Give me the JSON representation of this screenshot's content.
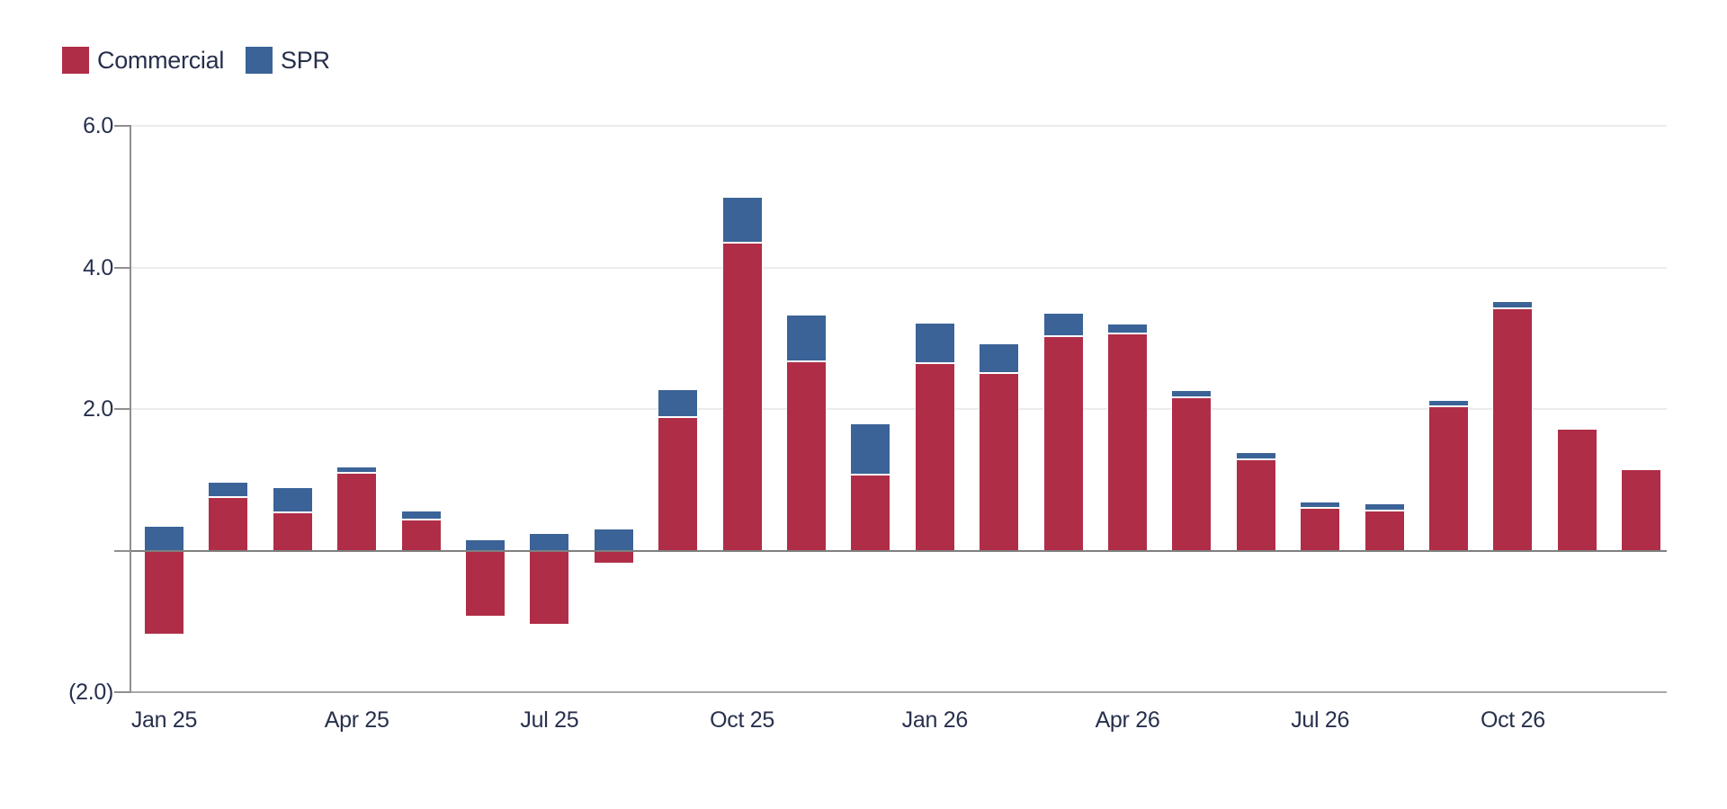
{
  "legend": {
    "items": [
      {
        "label": "Commercial",
        "color": "#b02d47"
      },
      {
        "label": "SPR",
        "color": "#3b6397"
      }
    ]
  },
  "chart_data": {
    "type": "bar",
    "stacked": true,
    "title": "",
    "xlabel": "",
    "ylabel": "",
    "categories": [
      "Jan 25",
      "Feb 25",
      "Mar 25",
      "Apr 25",
      "May 25",
      "Jun 25",
      "Jul 25",
      "Aug 25",
      "Sep 25",
      "Oct 25",
      "Nov 25",
      "Dec 25",
      "Jan 26",
      "Feb 26",
      "Mar 26",
      "Apr 26",
      "May 26",
      "Jun 26",
      "Jul 26",
      "Aug 26",
      "Sep 26",
      "Oct 26",
      "Nov 26",
      "Dec 26"
    ],
    "series": [
      {
        "name": "Commercial",
        "color": "#b02d47",
        "values": [
          -1.18,
          0.74,
          0.53,
          1.09,
          0.43,
          -0.92,
          -1.03,
          -0.17,
          1.87,
          4.34,
          2.66,
          1.06,
          2.63,
          2.5,
          3.02,
          3.05,
          2.15,
          1.28,
          0.59,
          0.55,
          2.03,
          3.41,
          1.71,
          1.14
        ]
      },
      {
        "name": "SPR",
        "color": "#3b6397",
        "values": [
          0.34,
          0.22,
          0.35,
          0.09,
          0.12,
          0.14,
          0.23,
          0.3,
          0.4,
          0.65,
          0.66,
          0.73,
          0.58,
          0.41,
          0.32,
          0.15,
          0.11,
          0.1,
          0.09,
          0.11,
          0.08,
          0.1,
          0.0,
          0.0
        ]
      }
    ],
    "ylim": [
      -2.0,
      6.0
    ],
    "ytick_interval": 2.0,
    "yticks": [
      {
        "value": 6.0,
        "label": "6.0"
      },
      {
        "value": 4.0,
        "label": "4.0"
      },
      {
        "value": 2.0,
        "label": "2.0"
      },
      {
        "value": 0.0,
        "label": ""
      },
      {
        "value": -2.0,
        "label": "(2.0)"
      }
    ],
    "xticks": [
      {
        "index": 0,
        "label": "Jan 25"
      },
      {
        "index": 3,
        "label": "Apr 25"
      },
      {
        "index": 6,
        "label": "Jul 25"
      },
      {
        "index": 9,
        "label": "Oct 25"
      },
      {
        "index": 12,
        "label": "Jan 26"
      },
      {
        "index": 15,
        "label": "Apr 26"
      },
      {
        "index": 18,
        "label": "Jul 26"
      },
      {
        "index": 21,
        "label": "Oct 26"
      }
    ],
    "grid": "horizontal",
    "legend_position": "top-left",
    "negative_label_format": "parentheses"
  },
  "style_colors": {
    "gridline": "#ececec",
    "zero_line": "#7f7f7f",
    "baseline": "#a9a9a9",
    "axis": "#8f8f8f",
    "text": "#27304d",
    "background": "#ffffff"
  }
}
